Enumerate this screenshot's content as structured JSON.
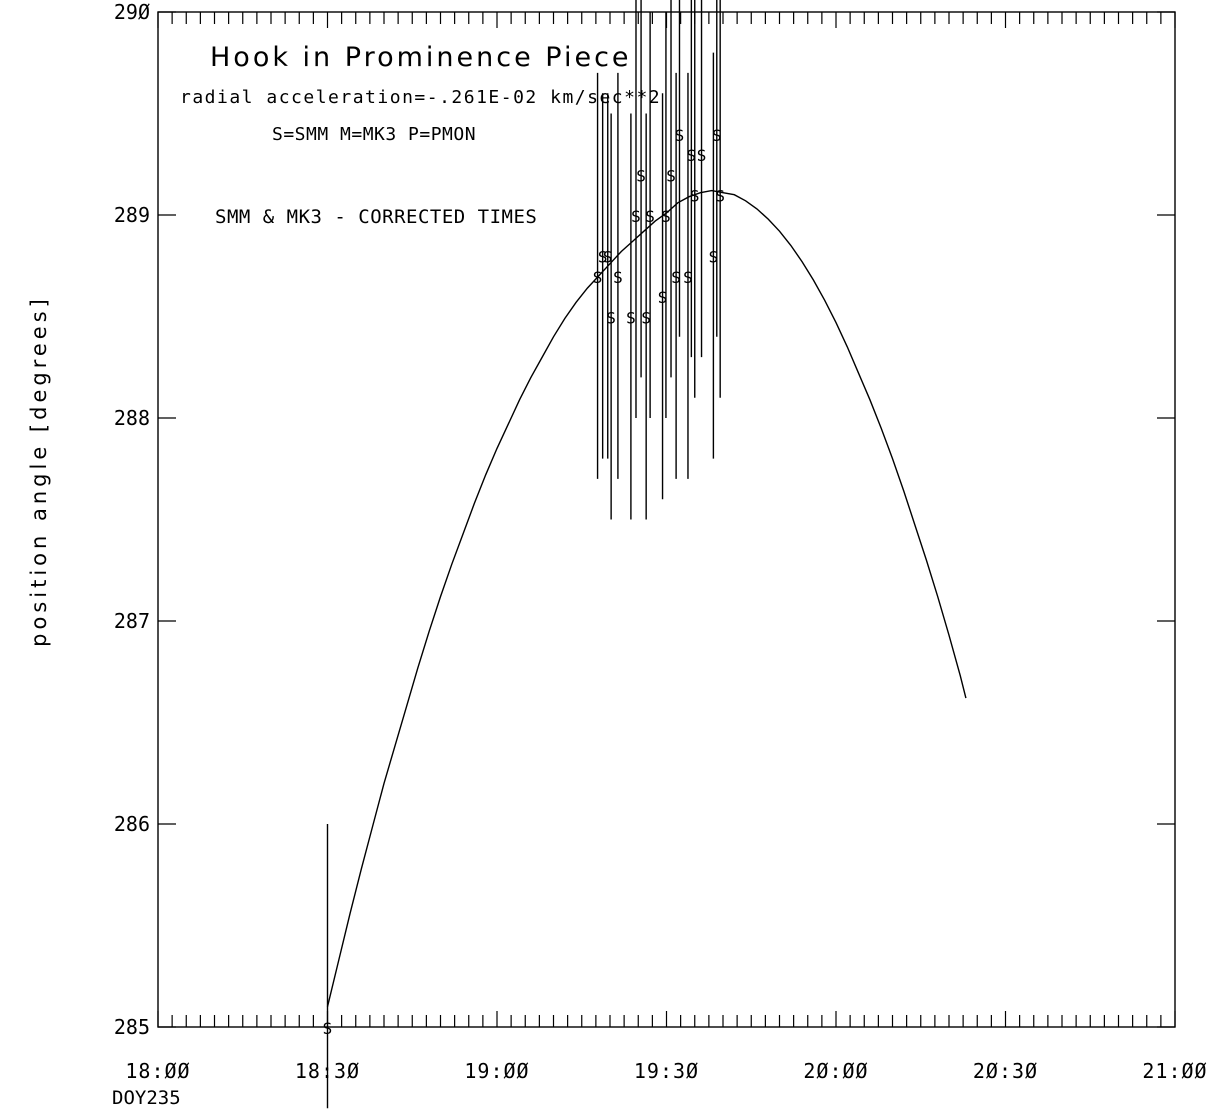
{
  "chart_data": {
    "type": "scatter",
    "title": "Hook in Prominence Piece",
    "subtitle": "radial acceleration=-.261E-02  km/sec**2",
    "legend_key": "S=SMM  M=MK3  P=PMON",
    "note": "SMM & MK3 - CORRECTED TIMES",
    "ylabel": "position angle [degrees]",
    "xlabel": "",
    "day_label": "DOY235",
    "xlim_minutes": [
      1080,
      1260
    ],
    "ylim": [
      285,
      290
    ],
    "x_ticks": [
      {
        "minutes": 1080,
        "label": "18:ØØ"
      },
      {
        "minutes": 1110,
        "label": "18:3Ø"
      },
      {
        "minutes": 1140,
        "label": "19:ØØ"
      },
      {
        "minutes": 1170,
        "label": "19:3Ø"
      },
      {
        "minutes": 1200,
        "label": "2Ø:ØØ"
      },
      {
        "minutes": 1230,
        "label": "2Ø:3Ø"
      },
      {
        "minutes": 1260,
        "label": "21:ØØ"
      }
    ],
    "y_ticks": [
      {
        "value": 285,
        "label": "285"
      },
      {
        "value": 286,
        "label": "286"
      },
      {
        "value": 287,
        "label": "287"
      },
      {
        "value": 288,
        "label": "288"
      },
      {
        "value": 289,
        "label": "289"
      },
      {
        "value": 290,
        "label": "29Ø"
      }
    ],
    "marker_label": "S",
    "observations": [
      {
        "t": 1110.0,
        "y": 285.0,
        "lo": 284.6,
        "hi": 286.0
      },
      {
        "t": 1157.8,
        "y": 288.7,
        "lo": 287.7,
        "hi": 289.7
      },
      {
        "t": 1158.7,
        "y": 288.8,
        "lo": 287.8,
        "hi": 289.6
      },
      {
        "t": 1159.6,
        "y": 288.8,
        "lo": 287.8,
        "hi": 289.6
      },
      {
        "t": 1160.2,
        "y": 288.5,
        "lo": 287.5,
        "hi": 289.5
      },
      {
        "t": 1161.4,
        "y": 288.7,
        "lo": 287.7,
        "hi": 289.7
      },
      {
        "t": 1163.7,
        "y": 288.5,
        "lo": 287.5,
        "hi": 289.5
      },
      {
        "t": 1164.6,
        "y": 289.0,
        "lo": 288.0,
        "hi": 290.2
      },
      {
        "t": 1165.5,
        "y": 289.2,
        "lo": 288.2,
        "hi": 290.2
      },
      {
        "t": 1166.4,
        "y": 288.5,
        "lo": 287.5,
        "hi": 289.5
      },
      {
        "t": 1167.1,
        "y": 289.0,
        "lo": 288.0,
        "hi": 290.0
      },
      {
        "t": 1169.3,
        "y": 288.6,
        "lo": 287.6,
        "hi": 289.6
      },
      {
        "t": 1169.9,
        "y": 289.0,
        "lo": 288.0,
        "hi": 290.0
      },
      {
        "t": 1170.8,
        "y": 289.2,
        "lo": 288.2,
        "hi": 290.2
      },
      {
        "t": 1171.7,
        "y": 288.7,
        "lo": 287.7,
        "hi": 289.7
      },
      {
        "t": 1172.3,
        "y": 289.4,
        "lo": 288.4,
        "hi": 290.4
      },
      {
        "t": 1173.8,
        "y": 288.7,
        "lo": 287.7,
        "hi": 289.7
      },
      {
        "t": 1174.4,
        "y": 289.3,
        "lo": 288.3,
        "hi": 290.3
      },
      {
        "t": 1175.0,
        "y": 289.1,
        "lo": 288.1,
        "hi": 290.1
      },
      {
        "t": 1176.2,
        "y": 289.3,
        "lo": 288.3,
        "hi": 290.3
      },
      {
        "t": 1178.3,
        "y": 288.8,
        "lo": 287.8,
        "hi": 289.8
      },
      {
        "t": 1178.9,
        "y": 289.4,
        "lo": 288.4,
        "hi": 290.4
      },
      {
        "t": 1179.5,
        "y": 289.1,
        "lo": 288.1,
        "hi": 290.1
      }
    ],
    "fit_curve": {
      "label": "quadratic fit",
      "points": [
        [
          1110,
          285.1
        ],
        [
          1112,
          285.33
        ],
        [
          1114,
          285.56
        ],
        [
          1116,
          285.78
        ],
        [
          1118,
          285.99
        ],
        [
          1120,
          286.2
        ],
        [
          1122,
          286.39
        ],
        [
          1124,
          286.58
        ],
        [
          1126,
          286.77
        ],
        [
          1128,
          286.95
        ],
        [
          1130,
          287.12
        ],
        [
          1132,
          287.28
        ],
        [
          1134,
          287.43
        ],
        [
          1136,
          287.58
        ],
        [
          1138,
          287.72
        ],
        [
          1140,
          287.85
        ],
        [
          1142,
          287.97
        ],
        [
          1144,
          288.09
        ],
        [
          1146,
          288.2
        ],
        [
          1148,
          288.3
        ],
        [
          1150,
          288.4
        ],
        [
          1152,
          288.49
        ],
        [
          1154,
          288.57
        ],
        [
          1156,
          288.64
        ],
        [
          1158,
          288.7
        ],
        [
          1160,
          288.76
        ],
        [
          1162,
          288.82
        ],
        [
          1164,
          288.87
        ],
        [
          1166,
          288.92
        ],
        [
          1168,
          288.97
        ],
        [
          1170,
          289.01
        ],
        [
          1172,
          289.06
        ],
        [
          1174,
          289.09
        ],
        [
          1176,
          289.11
        ],
        [
          1178,
          289.12
        ],
        [
          1180,
          289.11
        ],
        [
          1182,
          289.1
        ],
        [
          1184,
          289.07
        ],
        [
          1186,
          289.03
        ],
        [
          1188,
          288.98
        ],
        [
          1190,
          288.92
        ],
        [
          1192,
          288.85
        ],
        [
          1194,
          288.77
        ],
        [
          1196,
          288.68
        ],
        [
          1198,
          288.58
        ],
        [
          1200,
          288.47
        ],
        [
          1202,
          288.35
        ],
        [
          1204,
          288.22
        ],
        [
          1206,
          288.09
        ],
        [
          1208,
          287.95
        ],
        [
          1210,
          287.8
        ],
        [
          1212,
          287.64
        ],
        [
          1214,
          287.47
        ],
        [
          1216,
          287.3
        ],
        [
          1218,
          287.12
        ],
        [
          1220,
          286.93
        ],
        [
          1222,
          286.73
        ],
        [
          1223,
          286.62
        ]
      ]
    },
    "colors": {
      "ink": "#000000",
      "background": "#ffffff"
    }
  }
}
